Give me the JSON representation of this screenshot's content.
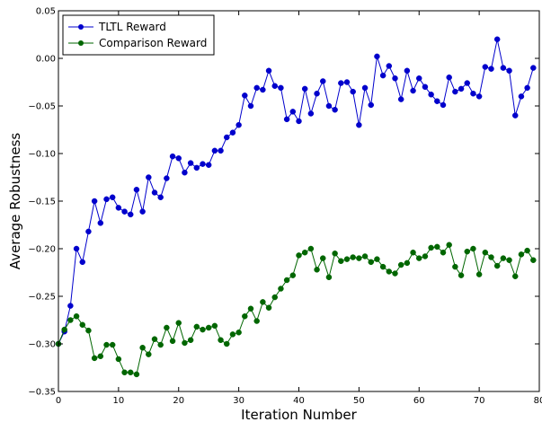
{
  "chart_data": {
    "type": "line",
    "title": "",
    "xlabel": "Iteration Number",
    "ylabel": "Average Robustness",
    "xlim": [
      0,
      80
    ],
    "ylim": [
      -0.35,
      0.05
    ],
    "xticks": [
      0,
      10,
      20,
      30,
      40,
      50,
      60,
      70,
      80
    ],
    "xtick_labels": [
      "0",
      "10",
      "20",
      "30",
      "40",
      "50",
      "60",
      "70",
      "80"
    ],
    "yticks": [
      0.05,
      0.0,
      -0.05,
      -0.1,
      -0.15,
      -0.2,
      -0.25,
      -0.3,
      -0.35
    ],
    "ytick_labels": [
      "0.05",
      "0.00",
      "−0.05",
      "−0.10",
      "−0.15",
      "−0.20",
      "−0.25",
      "−0.30",
      "−0.35"
    ],
    "grid": false,
    "legend_position": "top-left",
    "x": [
      0,
      1,
      2,
      3,
      4,
      5,
      6,
      7,
      8,
      9,
      10,
      11,
      12,
      13,
      14,
      15,
      16,
      17,
      18,
      19,
      20,
      21,
      22,
      23,
      24,
      25,
      26,
      27,
      28,
      29,
      30,
      31,
      32,
      33,
      34,
      35,
      36,
      37,
      38,
      39,
      40,
      41,
      42,
      43,
      44,
      45,
      46,
      47,
      48,
      49,
      50,
      51,
      52,
      53,
      54,
      55,
      56,
      57,
      58,
      59,
      60,
      61,
      62,
      63,
      64,
      65,
      66,
      67,
      68,
      69,
      70,
      71,
      72,
      73,
      74,
      75,
      76,
      77,
      78,
      79
    ],
    "series": [
      {
        "name": "TLTL Reward",
        "color": "#0000cc",
        "values": [
          -0.3,
          -0.287,
          -0.26,
          -0.2,
          -0.214,
          -0.182,
          -0.15,
          -0.173,
          -0.148,
          -0.146,
          -0.157,
          -0.161,
          -0.164,
          -0.138,
          -0.161,
          -0.125,
          -0.141,
          -0.146,
          -0.126,
          -0.103,
          -0.105,
          -0.12,
          -0.11,
          -0.115,
          -0.111,
          -0.112,
          -0.097,
          -0.097,
          -0.083,
          -0.078,
          -0.07,
          -0.039,
          -0.05,
          -0.031,
          -0.033,
          -0.013,
          -0.029,
          -0.031,
          -0.064,
          -0.056,
          -0.066,
          -0.032,
          -0.058,
          -0.037,
          -0.024,
          -0.05,
          -0.054,
          -0.026,
          -0.025,
          -0.035,
          -0.07,
          -0.031,
          -0.049,
          0.002,
          -0.018,
          -0.008,
          -0.021,
          -0.043,
          -0.013,
          -0.034,
          -0.021,
          -0.03,
          -0.038,
          -0.045,
          -0.049,
          -0.02,
          -0.035,
          -0.032,
          -0.026,
          -0.037,
          -0.04,
          -0.009,
          -0.011,
          0.02,
          -0.01,
          -0.013,
          -0.06,
          -0.04,
          -0.031,
          -0.01
        ]
      },
      {
        "name": "Comparison Reward",
        "color": "#006600",
        "values": [
          -0.3,
          -0.285,
          -0.275,
          -0.271,
          -0.28,
          -0.286,
          -0.315,
          -0.313,
          -0.301,
          -0.301,
          -0.316,
          -0.33,
          -0.33,
          -0.332,
          -0.304,
          -0.311,
          -0.295,
          -0.301,
          -0.283,
          -0.297,
          -0.278,
          -0.299,
          -0.296,
          -0.282,
          -0.285,
          -0.283,
          -0.281,
          -0.296,
          -0.3,
          -0.29,
          -0.288,
          -0.271,
          -0.263,
          -0.276,
          -0.256,
          -0.262,
          -0.251,
          -0.242,
          -0.233,
          -0.228,
          -0.207,
          -0.204,
          -0.2,
          -0.222,
          -0.21,
          -0.23,
          -0.205,
          -0.213,
          -0.211,
          -0.209,
          -0.21,
          -0.208,
          -0.214,
          -0.211,
          -0.219,
          -0.224,
          -0.226,
          -0.217,
          -0.215,
          -0.204,
          -0.21,
          -0.208,
          -0.199,
          -0.198,
          -0.204,
          -0.196,
          -0.219,
          -0.228,
          -0.203,
          -0.2,
          -0.227,
          -0.204,
          -0.209,
          -0.218,
          -0.21,
          -0.212,
          -0.229,
          -0.206,
          -0.202,
          -0.212
        ]
      }
    ]
  }
}
